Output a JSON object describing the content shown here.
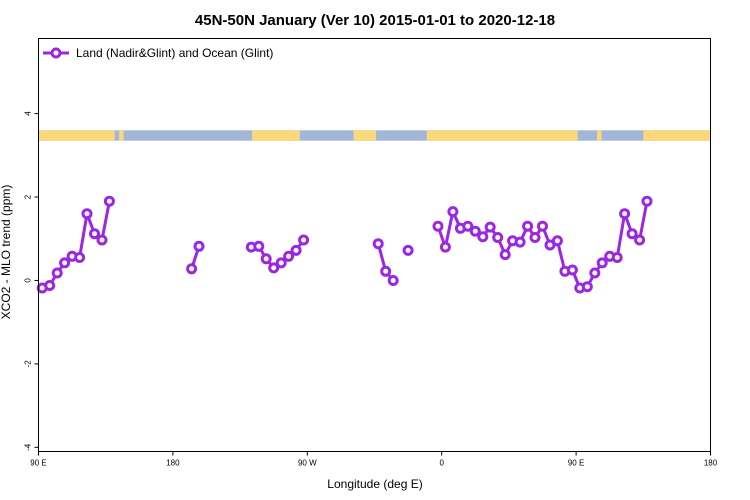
{
  "chart_data": {
    "type": "line",
    "title": "45N-50N January (Ver 10)   2015-01-01 to 2020-12-18",
    "xlabel": "Longitude (deg E)",
    "ylabel": "XCO2 - MLO trend (ppm)",
    "xlim": [
      90,
      540
    ],
    "ylim": [
      -4.1,
      5.8
    ],
    "x_ticks": [
      {
        "value": 90,
        "label": "90 E"
      },
      {
        "value": 180,
        "label": "180"
      },
      {
        "value": 270,
        "label": "90 W"
      },
      {
        "value": 360,
        "label": "0"
      },
      {
        "value": 450,
        "label": "90 E"
      },
      {
        "value": 540,
        "label": "180"
      }
    ],
    "y_ticks": [
      {
        "value": -4,
        "label": "-4"
      },
      {
        "value": -2,
        "label": "-2"
      },
      {
        "value": 0,
        "label": "0"
      },
      {
        "value": 2,
        "label": "2"
      },
      {
        "value": 4,
        "label": "4"
      }
    ],
    "grid": false,
    "legend_position": "top-left",
    "map_strip": {
      "y_range": [
        3.35,
        3.6
      ],
      "ocean_color": "#a2b6d8",
      "land_color": "#fbd97b",
      "land_spans": [
        [
          90,
          141
        ],
        [
          144,
          147
        ],
        [
          233,
          265
        ],
        [
          301,
          316
        ],
        [
          350,
          451
        ],
        [
          464,
          467
        ],
        [
          495,
          540
        ]
      ]
    },
    "series": [
      {
        "name": "Land (Nadir&Glint) and Ocean (Glint)",
        "color": "#9b27e3",
        "segments": [
          {
            "x": [
              92.5,
              97.5,
              102.5,
              107.5,
              112.5,
              117.5,
              122.5,
              127.5,
              132.5,
              137.5
            ],
            "y": [
              -0.18,
              -0.12,
              0.18,
              0.42,
              0.58,
              0.55,
              1.6,
              1.12,
              0.97,
              1.9
            ]
          },
          {
            "x": [
              192.5,
              197.5
            ],
            "y": [
              0.28,
              0.82
            ]
          },
          {
            "x": [
              232.5,
              237.5,
              242.5,
              247.5,
              252.5,
              257.5,
              262.5,
              267.5
            ],
            "y": [
              0.8,
              0.82,
              0.52,
              0.3,
              0.42,
              0.58,
              0.72,
              0.97
            ]
          },
          {
            "x": [
              317.5,
              322.5,
              327.5
            ],
            "y": [
              0.88,
              0.22,
              0.0
            ]
          },
          {
            "x": [
              337.5
            ],
            "y": [
              0.72
            ]
          },
          {
            "x": [
              357.5,
              362.5,
              367.5,
              372.5,
              377.5,
              382.5,
              387.5,
              392.5,
              397.5,
              402.5,
              407.5,
              412.5,
              417.5,
              422.5,
              427.5,
              432.5,
              437.5,
              442.5,
              447.5,
              452.5,
              457.5,
              462.5,
              467.5,
              472.5,
              477.5,
              482.5,
              487.5,
              492.5,
              497.5
            ],
            "y": [
              1.3,
              0.8,
              1.65,
              1.25,
              1.3,
              1.18,
              1.05,
              1.28,
              1.03,
              0.62,
              0.95,
              0.92,
              1.3,
              1.03,
              1.3,
              0.85,
              0.95,
              0.22,
              0.25,
              -0.18,
              -0.15,
              0.18,
              0.42,
              0.58,
              0.55,
              1.6,
              1.12,
              0.97,
              1.9
            ]
          }
        ]
      }
    ]
  }
}
